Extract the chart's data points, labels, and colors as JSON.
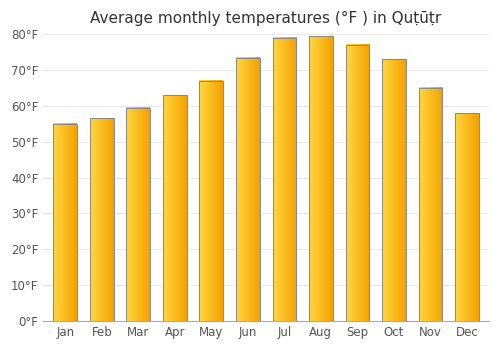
{
  "title": "Average monthly temperatures (°F ) in Quṭūṭr",
  "months": [
    "Jan",
    "Feb",
    "Mar",
    "Apr",
    "May",
    "Jun",
    "Jul",
    "Aug",
    "Sep",
    "Oct",
    "Nov",
    "Dec"
  ],
  "values": [
    55,
    56.5,
    59.5,
    63,
    67,
    73.5,
    79,
    79.5,
    77,
    73,
    65,
    58
  ],
  "ylim": [
    0,
    80
  ],
  "yticks": [
    0,
    10,
    20,
    30,
    40,
    50,
    60,
    70,
    80
  ],
  "ytick_labels": [
    "0°F",
    "10°F",
    "20°F",
    "30°F",
    "40°F",
    "50°F",
    "60°F",
    "70°F",
    "80°F"
  ],
  "bar_color_left": "#FFD840",
  "bar_color_right": "#F5A000",
  "bar_edge_color": "#888888",
  "background_color": "#ffffff",
  "grid_color": "#e8e8ee",
  "title_fontsize": 11,
  "tick_fontsize": 8.5
}
